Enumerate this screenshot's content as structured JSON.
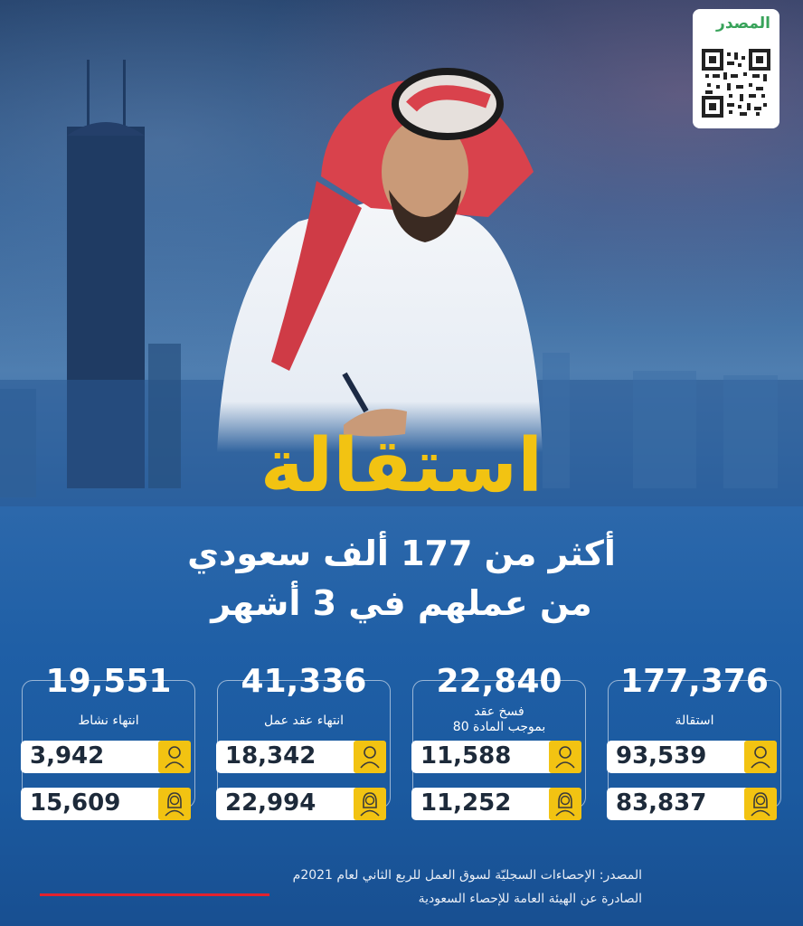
{
  "source_badge": {
    "label": "المصدر",
    "icon": "qr-code-icon"
  },
  "headline": {
    "title": "استقالة",
    "line1": "أكثر من 177 ألف سعودي",
    "line2": "من عملهم في 3 أشهر"
  },
  "colors": {
    "accent": "#f2c312",
    "background": "#1f5fa6",
    "badge_text": "#38a35a",
    "underline": "#e3222e"
  },
  "stats": [
    {
      "total": "177,376",
      "label_lines": [
        "استقالة"
      ],
      "male": "93,539",
      "female": "83,837",
      "male_icon": "male-user-icon",
      "female_icon": "female-user-icon"
    },
    {
      "total": "22,840",
      "label_lines": [
        "فسخ عقد",
        "بموجب المادة 80"
      ],
      "male": "11,588",
      "female": "11,252",
      "male_icon": "male-user-icon",
      "female_icon": "female-user-icon"
    },
    {
      "total": "41,336",
      "label_lines": [
        "انتهاء عقد عمل"
      ],
      "male": "18,342",
      "female": "22,994",
      "male_icon": "male-user-icon",
      "female_icon": "female-user-icon"
    },
    {
      "total": "19,551",
      "label_lines": [
        "انتهاء نشاط"
      ],
      "male": "3,942",
      "female": "15,609",
      "male_icon": "male-user-icon",
      "female_icon": "female-user-icon"
    }
  ],
  "source": {
    "line1": "المصدر: الإحصاءات السجليّة لسوق العمل للربع الثاني لعام 2021م",
    "line2": "الصادرة عن الهيئة العامة للإحصاء السعودية"
  }
}
